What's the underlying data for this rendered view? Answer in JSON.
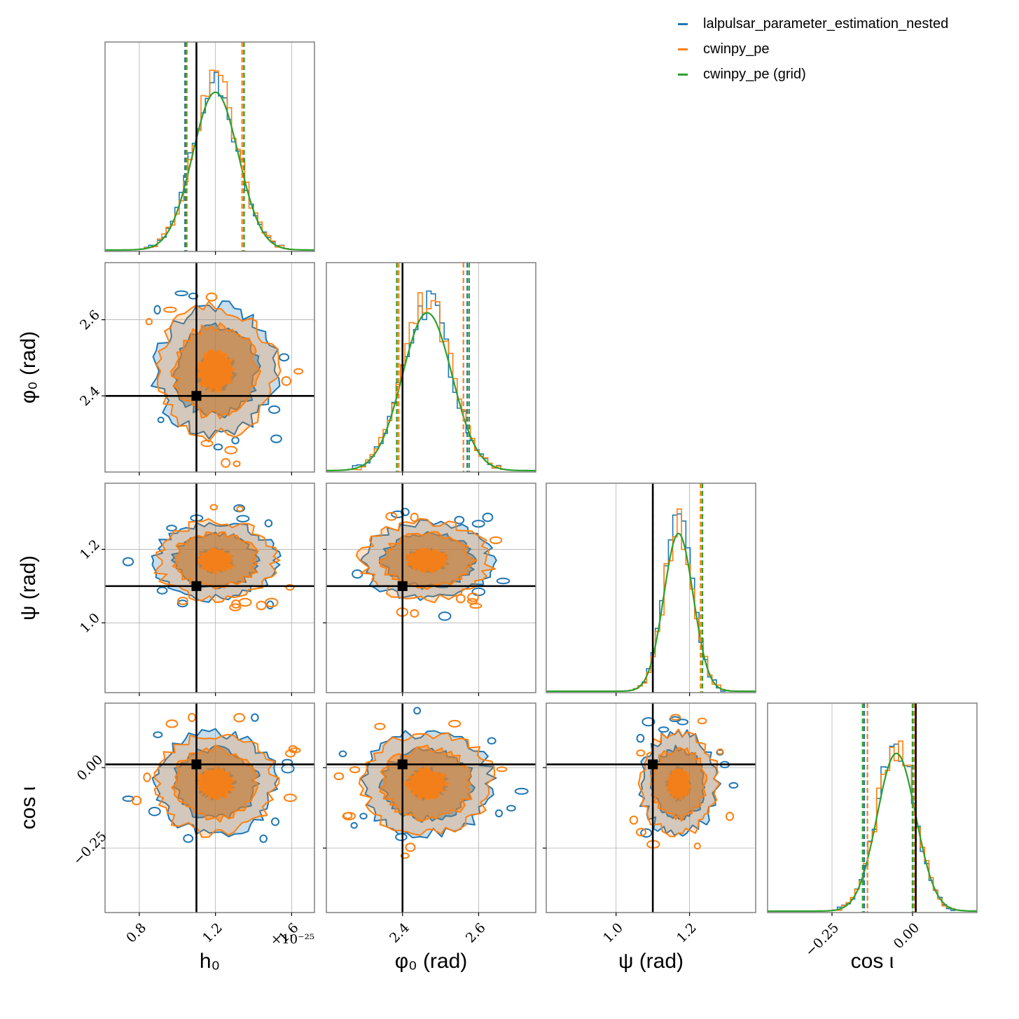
{
  "chart_data": {
    "type": "corner",
    "parameters": [
      {
        "key": "h0",
        "label": "h₀",
        "unit": "",
        "range": [
          0.62,
          1.72
        ],
        "ticks": [
          0.8,
          1.2,
          1.6
        ],
        "tick_labels": [
          "0.8",
          "1.2",
          "1.6"
        ],
        "scale_note": "×10⁻²⁵",
        "injected": 1.1,
        "mean": 1.2,
        "sd": 0.12
      },
      {
        "key": "phi0",
        "label": "φ₀ (rad)",
        "unit": "",
        "range": [
          2.2,
          2.75
        ],
        "ticks": [
          2.4,
          2.6
        ],
        "tick_labels": [
          "2.4",
          "2.6"
        ],
        "scale_note": "",
        "injected": 2.4,
        "mean": 2.465,
        "sd": 0.065
      },
      {
        "key": "psi",
        "label": "ψ (rad)",
        "unit": "",
        "range": [
          0.81,
          1.38
        ],
        "ticks": [
          1.0,
          1.2
        ],
        "tick_labels": [
          "1.0",
          "1.2"
        ],
        "scale_note": "",
        "injected": 1.1,
        "mean": 1.17,
        "sd": 0.04
      },
      {
        "key": "cosi",
        "label": "cos ι",
        "unit": "",
        "range": [
          -0.45,
          0.2
        ],
        "ticks": [
          -0.25,
          0.0
        ],
        "tick_labels": [
          "−0.25",
          "0.00"
        ],
        "scale_note": "",
        "injected": 0.01,
        "mean": -0.05,
        "sd": 0.06
      }
    ],
    "series": [
      {
        "name": "lalpulsar_parameter_estimation_nested",
        "color": "#1f77b4",
        "style": "histogram + filled contours"
      },
      {
        "name": "cwinpy_pe",
        "color": "#ff7f0e",
        "style": "histogram + filled contours"
      },
      {
        "name": "cwinpy_pe (grid)",
        "color": "#2ca02c",
        "style": "smooth marginal curve"
      }
    ],
    "credible_intervals": {
      "h0": {
        "lalpulsar_parameter_estimation_nested": [
          1.04,
          1.35
        ],
        "cwinpy_pe": [
          1.05,
          1.34
        ],
        "cwinpy_pe (grid)": [
          1.045,
          1.35
        ]
      },
      "phi0": {
        "lalpulsar_parameter_estimation_nested": [
          2.385,
          2.57
        ],
        "cwinpy_pe": [
          2.39,
          2.56
        ],
        "cwinpy_pe (grid)": [
          2.385,
          2.575
        ]
      },
      "psi": {
        "lalpulsar_parameter_estimation_nested": [
          1.1,
          1.235
        ],
        "cwinpy_pe": [
          1.1,
          1.23
        ],
        "cwinpy_pe (grid)": [
          1.1,
          1.235
        ]
      },
      "cosi": {
        "lalpulsar_parameter_estimation_nested": [
          -0.15,
          0.0
        ],
        "cwinpy_pe": [
          -0.14,
          0.005
        ],
        "cwinpy_pe (grid)": [
          -0.155,
          0.0
        ]
      }
    },
    "contour_levels": [
      "1σ",
      "2σ",
      "3σ"
    ],
    "grid": true,
    "legend_position": "top-right",
    "truth_color": "#000000"
  }
}
